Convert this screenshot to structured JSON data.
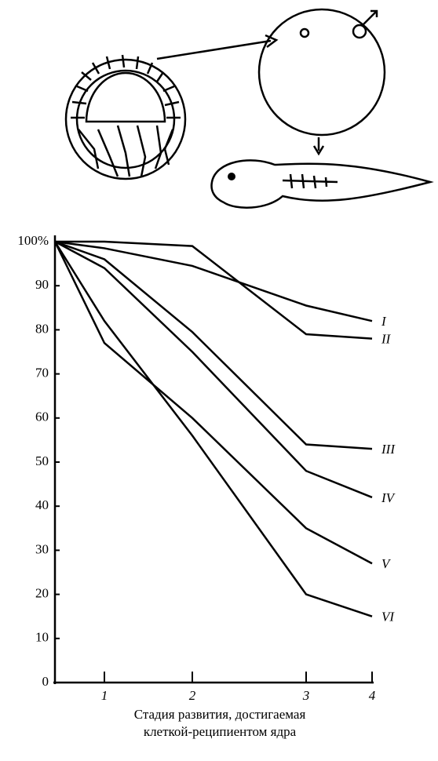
{
  "chart_data": {
    "type": "line",
    "categories": [
      null,
      "1",
      "2",
      "3",
      "4"
    ],
    "series": [
      {
        "name": "I",
        "color": "#000000",
        "values": [
          100,
          98.5,
          94.5,
          85.5,
          82
        ]
      },
      {
        "name": "II",
        "color": "#000000",
        "values": [
          100,
          100,
          99,
          79,
          78
        ]
      },
      {
        "name": "III",
        "color": "#000000",
        "values": [
          100,
          96,
          79.5,
          54,
          53
        ]
      },
      {
        "name": "IV",
        "color": "#000000",
        "values": [
          100,
          94,
          75,
          48,
          42
        ]
      },
      {
        "name": "V",
        "color": "#000000",
        "values": [
          100,
          77,
          60,
          35,
          27
        ]
      },
      {
        "name": "VI",
        "color": "#000000",
        "values": [
          100,
          82,
          56,
          20,
          15
        ]
      }
    ],
    "ylim": [
      0,
      100
    ],
    "yticks": [
      0,
      10,
      20,
      30,
      40,
      50,
      60,
      70,
      80,
      90,
      {
        "value": 100,
        "label": "100%"
      }
    ],
    "x_label": [
      "Стадия развития, достигаемая",
      "клеткой-реципиентом ядра"
    ],
    "grid": false
  }
}
